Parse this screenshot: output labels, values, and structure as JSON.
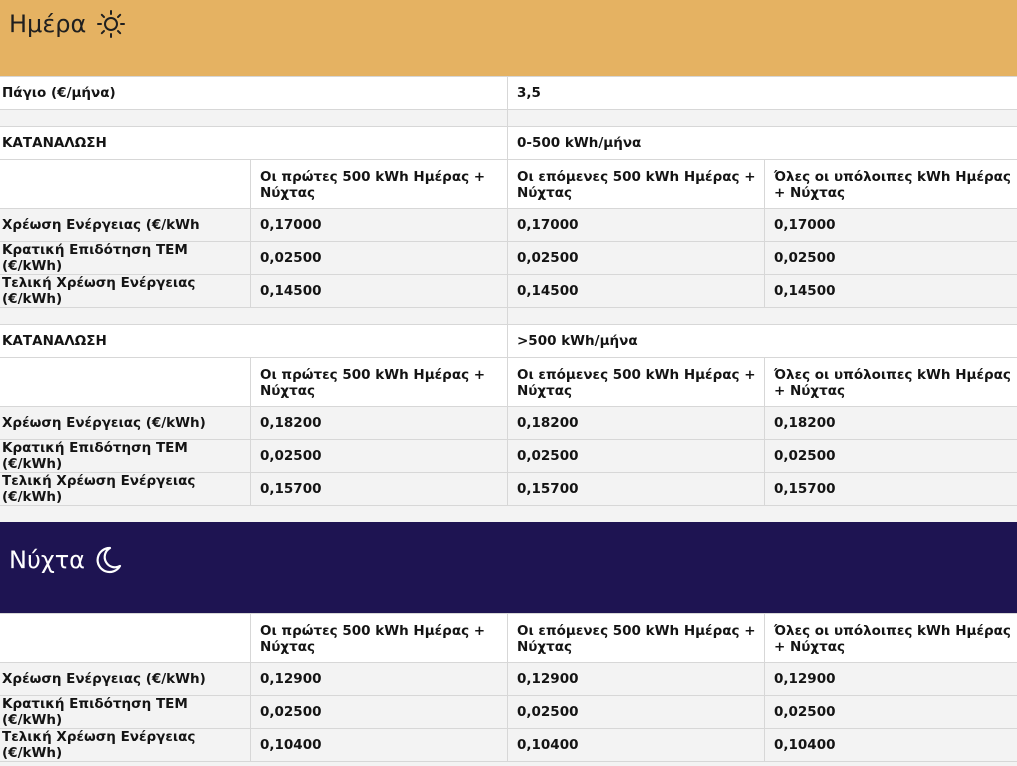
{
  "colors": {
    "day_header": "#e5b262",
    "night_header": "#1e1452",
    "row_grey": "#f3f3f3"
  },
  "day": {
    "title": "Ημέρα",
    "icon": "sun-icon",
    "fixed_label": "Πάγιο (€/μήνα)",
    "fixed_value": "3,5",
    "tier1": {
      "consumption_label": "ΚΑΤΑΝΑΛΩΣΗ",
      "consumption_value": "0-500 kWh/μήνα",
      "headers": [
        "Οι πρώτες 500 kWh Ημέρας + Νύχτας",
        "Οι επόμενες 500 kWh Ημέρας + Νύχτας",
        "Όλες οι υπόλοιπες kWh Ημέρας + Νύχτας"
      ],
      "rows": [
        {
          "label": "Χρέωση Ενέργειας (€/kWh",
          "values": [
            "0,17000",
            "0,17000",
            "0,17000"
          ]
        },
        {
          "label": "Κρατική Επιδότηση ΤΕΜ (€/kWh)",
          "values": [
            "0,02500",
            "0,02500",
            "0,02500"
          ]
        },
        {
          "label": "Τελική Χρέωση Ενέργειας (€/kWh)",
          "values": [
            "0,14500",
            "0,14500",
            "0,14500"
          ]
        }
      ]
    },
    "tier2": {
      "consumption_label": "ΚΑΤΑΝΑΛΩΣΗ",
      "consumption_value": ">500 kWh/μήνα",
      "headers": [
        "Οι πρώτες 500 kWh Ημέρας + Νύχτας",
        "Οι επόμενες 500 kWh Ημέρας + Νύχτας",
        "Όλες οι υπόλοιπες kWh Ημέρας + Νύχτας"
      ],
      "rows": [
        {
          "label": "Χρέωση Ενέργειας (€/kWh)",
          "values": [
            "0,18200",
            "0,18200",
            "0,18200"
          ]
        },
        {
          "label": "Κρατική Επιδότηση ΤΕΜ (€/kWh)",
          "values": [
            "0,02500",
            "0,02500",
            "0,02500"
          ]
        },
        {
          "label": "Τελική Χρέωση Ενέργειας (€/kWh)",
          "values": [
            "0,15700",
            "0,15700",
            "0,15700"
          ]
        }
      ]
    }
  },
  "night": {
    "title": "Νύχτα",
    "icon": "moon-icon",
    "headers": [
      "Οι πρώτες 500 kWh Ημέρας + Νύχτας",
      "Οι επόμενες 500 kWh Ημέρας + Νύχτας",
      "Όλες οι υπόλοιπες kWh Ημέρας + Νύχτας"
    ],
    "rows": [
      {
        "label": "Χρέωση Ενέργειας (€/kWh)",
        "values": [
          "0,12900",
          "0,12900",
          "0,12900"
        ]
      },
      {
        "label": "Κρατική Επιδότηση ΤΕΜ (€/kWh)",
        "values": [
          "0,02500",
          "0,02500",
          "0,02500"
        ]
      },
      {
        "label": "Τελική Χρέωση Ενέργειας (€/kWh)",
        "values": [
          "0,10400",
          "0,10400",
          "0,10400"
        ]
      }
    ]
  }
}
